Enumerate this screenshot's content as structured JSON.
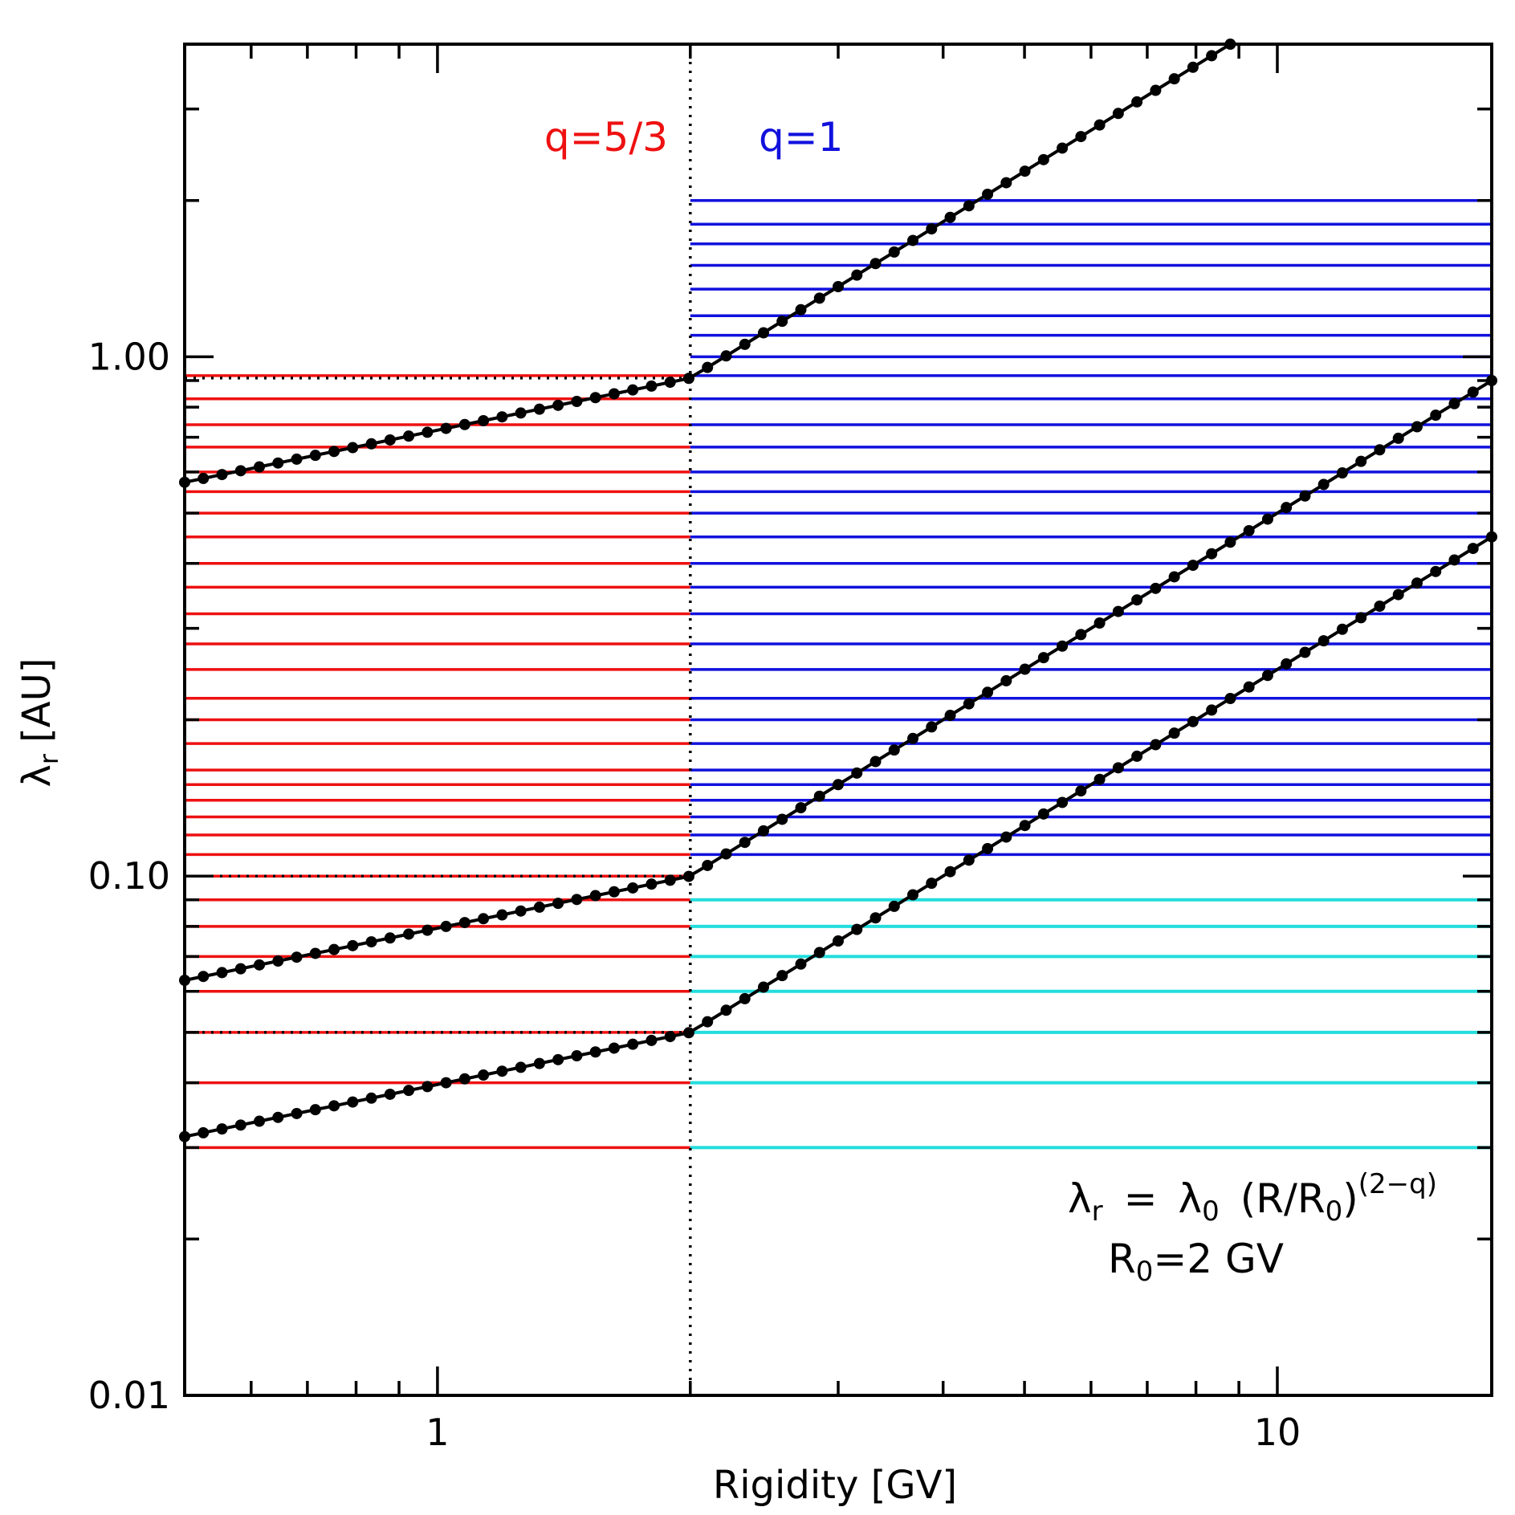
{
  "chart_data": {
    "type": "line",
    "xlabel": "Rigidity [GV]",
    "ylabel_main": "λ",
    "ylabel_sub": "r",
    "ylabel_unit": "[AU]",
    "xscale": "log",
    "yscale": "log",
    "xlim": [
      0.5,
      18
    ],
    "ylim": [
      0.01,
      4
    ],
    "x_tick_labels": [
      {
        "value": 1,
        "label": "1"
      },
      {
        "value": 10,
        "label": "10"
      }
    ],
    "y_tick_labels": [
      {
        "value": 0.01,
        "label": "0.01"
      },
      {
        "value": 0.1,
        "label": "0.10"
      },
      {
        "value": 1,
        "label": "1.00"
      }
    ],
    "break_rigidity": 2,
    "series": [
      {
        "lambda0": 0.91,
        "q_low": 1.6667,
        "q_high": 1.0
      },
      {
        "lambda0": 0.1,
        "q_low": 1.6667,
        "q_high": 1.0
      },
      {
        "lambda0": 0.05,
        "q_low": 1.6667,
        "q_high": 1.0
      }
    ],
    "red_levels": [
      0.03,
      0.04,
      0.05,
      0.06,
      0.07,
      0.08,
      0.09,
      0.1,
      0.11,
      0.12,
      0.13,
      0.14,
      0.15,
      0.16,
      0.18,
      0.2,
      0.22,
      0.25,
      0.28,
      0.32,
      0.36,
      0.4,
      0.45,
      0.5,
      0.55,
      0.6,
      0.67,
      0.74,
      0.83,
      0.92
    ],
    "blue_levels": [
      0.11,
      0.12,
      0.13,
      0.14,
      0.15,
      0.16,
      0.18,
      0.2,
      0.22,
      0.25,
      0.28,
      0.32,
      0.36,
      0.4,
      0.45,
      0.5,
      0.55,
      0.6,
      0.67,
      0.74,
      0.83,
      0.92,
      1.0,
      1.1,
      1.2,
      1.35,
      1.5,
      1.65,
      1.8,
      2.0
    ],
    "cyan_levels": [
      0.03,
      0.04,
      0.05,
      0.06,
      0.07,
      0.08,
      0.09
    ],
    "colors": {
      "red": "#ee1111",
      "blue": "#1111dd",
      "cyan": "#22dddd",
      "curve": "#000000"
    },
    "annotations": {
      "q_low": "q=5/3",
      "q_high": "q=1",
      "formula_lambda": "λ",
      "formula_r_sub": "r",
      "formula_eq": "=",
      "formula_lambda0": "λ",
      "formula_zero_sub": "0",
      "formula_ratio_open": "(R/R",
      "formula_ratio_sub": "0",
      "formula_ratio_close": ")",
      "formula_exponent": "(2−q)",
      "r0_prefix": "R",
      "r0_sub": "0",
      "r0_value": "=2 GV"
    }
  }
}
